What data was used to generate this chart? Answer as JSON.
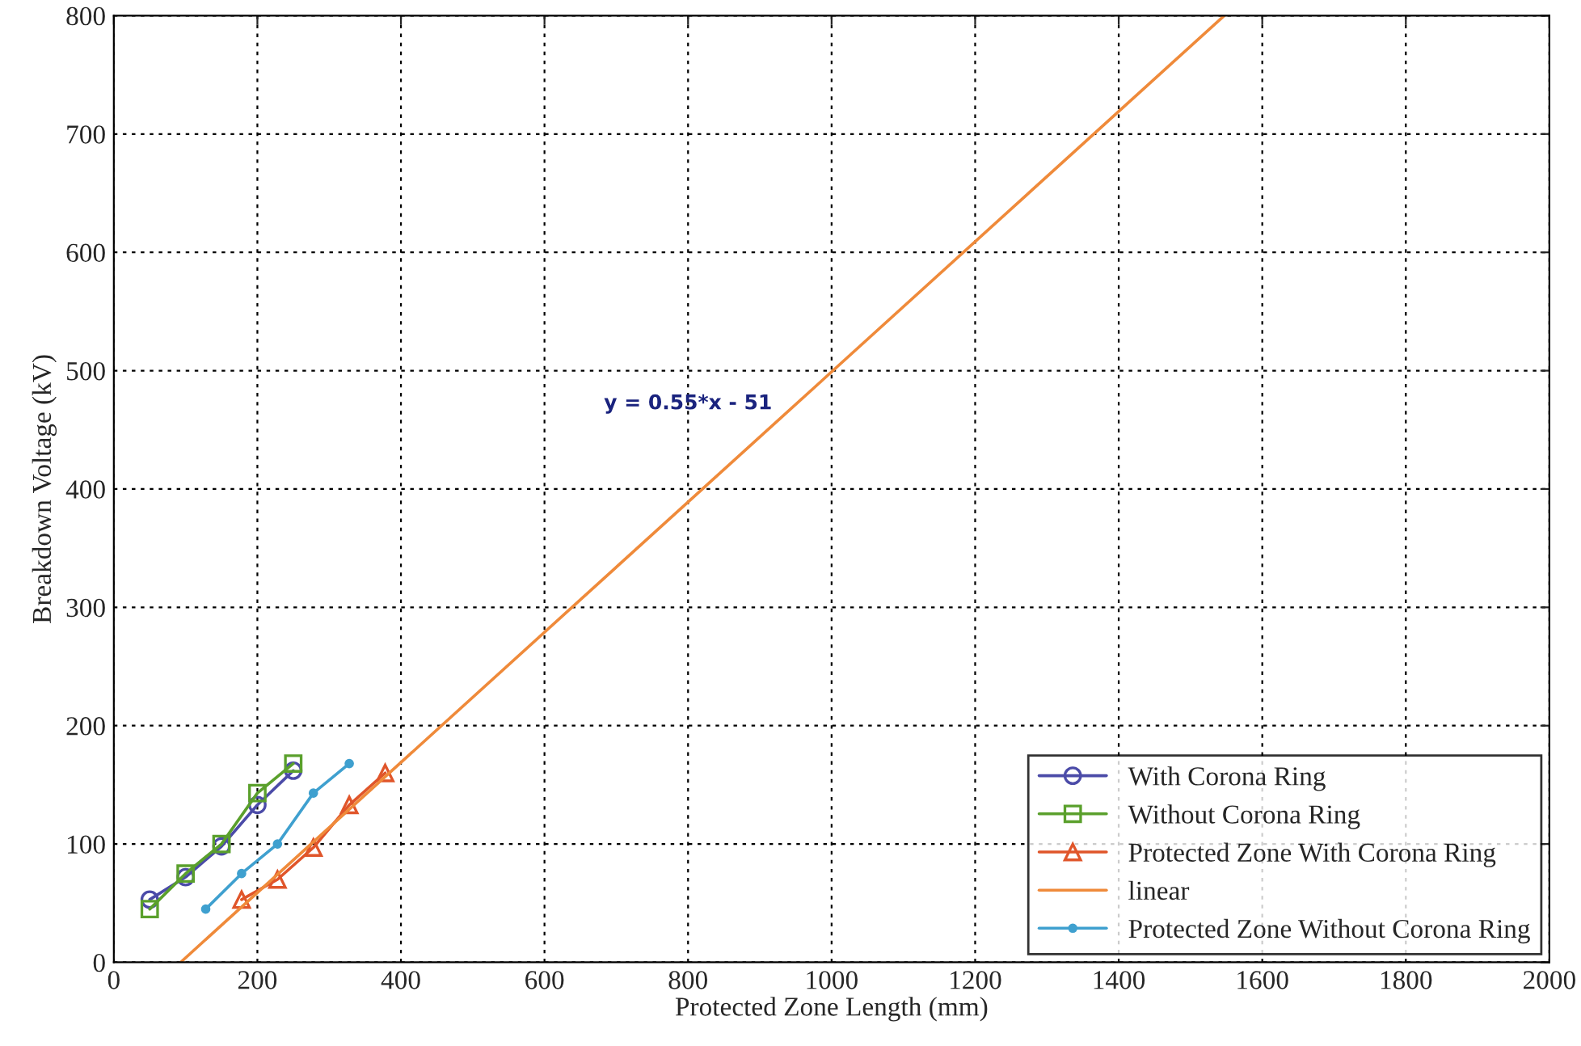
{
  "chart_data": {
    "type": "line",
    "xlabel": "Protected Zone Length (mm)",
    "ylabel": "Breakdown Voltage (kV)",
    "xlim": [
      0,
      2000
    ],
    "xticks": [
      0,
      200,
      400,
      600,
      800,
      1000,
      1200,
      1400,
      1600,
      1800,
      2000
    ],
    "ylim": [
      0,
      800
    ],
    "yticks": [
      0,
      100,
      200,
      300,
      400,
      500,
      600,
      700,
      800
    ],
    "grid": true,
    "legend": "bottom right",
    "series": [
      {
        "name": "With Corona Ring",
        "color": "#4b4ba8",
        "marker": "circle",
        "x": [
          50,
          100,
          150,
          200,
          250
        ],
        "values": [
          53,
          72,
          98,
          133,
          162
        ]
      },
      {
        "name": "Without Corona Ring",
        "color": "#5aa02c",
        "marker": "square",
        "x": [
          50,
          100,
          150,
          200,
          250
        ],
        "values": [
          45,
          75,
          100,
          143,
          168
        ]
      },
      {
        "name": "Protected Zone With Corona Ring",
        "color": "#e0552a",
        "marker": "triangle",
        "x": [
          178,
          228,
          278,
          328,
          378
        ],
        "values": [
          53,
          70,
          97,
          133,
          160
        ]
      },
      {
        "name": "linear",
        "color": "#ef8a3a",
        "marker": "none",
        "x": [
          93,
          1547
        ],
        "values": [
          0,
          800
        ]
      },
      {
        "name": "Protected Zone Without Corona Ring",
        "color": "#3fa0cf",
        "marker": "circle",
        "x": [
          128,
          178,
          228,
          278,
          328
        ],
        "values": [
          45,
          75,
          100,
          143,
          168
        ]
      }
    ],
    "annotations": [
      "y = 0.55*x - 51"
    ]
  }
}
